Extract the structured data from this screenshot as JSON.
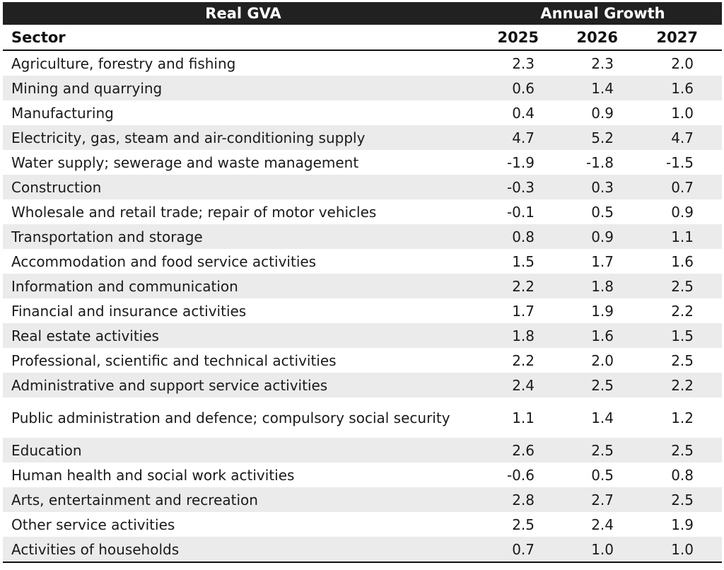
{
  "table": {
    "title_left": "Real GVA",
    "title_right": "Annual Growth",
    "sector_header": "Sector",
    "years": [
      "2025",
      "2026",
      "2027"
    ],
    "rows": [
      {
        "sector": "Agriculture, forestry and fishing",
        "v2025": "2.3",
        "v2026": "2.3",
        "v2027": "2.0"
      },
      {
        "sector": "Mining and quarrying",
        "v2025": "0.6",
        "v2026": "1.4",
        "v2027": "1.6"
      },
      {
        "sector": "Manufacturing",
        "v2025": "0.4",
        "v2026": "0.9",
        "v2027": "1.0"
      },
      {
        "sector": "Electricity, gas, steam and air-conditioning supply",
        "v2025": "4.7",
        "v2026": "5.2",
        "v2027": "4.7"
      },
      {
        "sector": "Water supply; sewerage and waste management",
        "v2025": "-1.9",
        "v2026": "-1.8",
        "v2027": "-1.5"
      },
      {
        "sector": "Construction",
        "v2025": "-0.3",
        "v2026": "0.3",
        "v2027": "0.7"
      },
      {
        "sector": "Wholesale and retail trade; repair of motor vehicles",
        "v2025": "-0.1",
        "v2026": "0.5",
        "v2027": "0.9"
      },
      {
        "sector": "Transportation and storage",
        "v2025": "0.8",
        "v2026": "0.9",
        "v2027": "1.1"
      },
      {
        "sector": "Accommodation and food service activities",
        "v2025": "1.5",
        "v2026": "1.7",
        "v2027": "1.6"
      },
      {
        "sector": "Information and communication",
        "v2025": "2.2",
        "v2026": "1.8",
        "v2027": "2.5"
      },
      {
        "sector": "Financial and insurance activities",
        "v2025": "1.7",
        "v2026": "1.9",
        "v2027": "2.2"
      },
      {
        "sector": "Real estate activities",
        "v2025": "1.8",
        "v2026": "1.6",
        "v2027": "1.5"
      },
      {
        "sector": "Professional, scientific and technical activities",
        "v2025": "2.2",
        "v2026": "2.0",
        "v2027": "2.5"
      },
      {
        "sector": "Administrative and support service activities",
        "v2025": "2.4",
        "v2026": "2.5",
        "v2027": "2.2"
      },
      {
        "sector": "Public administration and defence; compulsory social security",
        "v2025": "1.1",
        "v2026": "1.4",
        "v2027": "1.2"
      },
      {
        "sector": "Education",
        "v2025": "2.6",
        "v2026": "2.5",
        "v2027": "2.5"
      },
      {
        "sector": "Human health and social work activities",
        "v2025": "-0.6",
        "v2026": "0.5",
        "v2027": "0.8"
      },
      {
        "sector": "Arts, entertainment and recreation",
        "v2025": "2.8",
        "v2026": "2.7",
        "v2027": "2.5"
      },
      {
        "sector": "Other service activities",
        "v2025": "2.5",
        "v2026": "2.4",
        "v2027": "1.9"
      },
      {
        "sector": "Activities of households",
        "v2025": "0.7",
        "v2026": "1.0",
        "v2027": "1.0"
      }
    ]
  }
}
